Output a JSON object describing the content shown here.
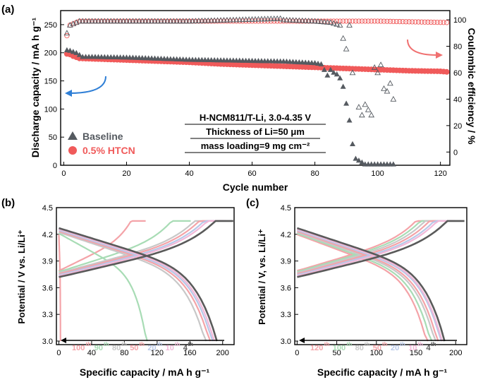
{
  "chart_data": [
    {
      "panel": "(a)",
      "type": "scatter",
      "xlabel": "Cycle number",
      "ylabel": "Discharge capacity / mA h g⁻¹",
      "y2label": "Coulombic efficiency / %",
      "xlim": [
        -1,
        123
      ],
      "ylim": [
        0,
        275
      ],
      "y2lim": [
        -10,
        107
      ],
      "xticks": [
        "0",
        "20",
        "40",
        "60",
        "80",
        "100",
        "120"
      ],
      "yticks": [
        "0",
        "50",
        "100",
        "150",
        "200",
        "250"
      ],
      "y2ticks": [
        "0",
        "20",
        "40",
        "60",
        "80",
        "100"
      ],
      "annotation": [
        "H-NCM811/T-Li, 3.0-4.35 V",
        "Thickness of Li=50 μm",
        "mass loading=9 mg cm⁻²"
      ],
      "legend": [
        {
          "name": "Baseline",
          "color": "#555a60",
          "marker": "triangle"
        },
        {
          "name": "0.5% HTCN",
          "color": "#f05a5a",
          "marker": "circle"
        }
      ],
      "series": [
        {
          "name": "Baseline capacity",
          "color": "#555a60",
          "x": [
            1,
            2,
            3,
            4,
            6,
            10,
            20,
            30,
            40,
            50,
            60,
            70,
            80,
            82,
            84,
            85,
            86,
            87,
            88,
            89,
            90,
            91,
            92,
            93,
            96,
            100,
            105
          ],
          "y": [
            205,
            204,
            202,
            200,
            193,
            193,
            192,
            190,
            188,
            187,
            186,
            185,
            182,
            180,
            160,
            170,
            165,
            162,
            155,
            140,
            110,
            80,
            38,
            12,
            2,
            2,
            2
          ]
        },
        {
          "name": "0.5% HTCN capacity",
          "color": "#f05a5a",
          "x": [
            1,
            2,
            3,
            5,
            10,
            20,
            30,
            40,
            50,
            60,
            70,
            80,
            90,
            100,
            110,
            120,
            122
          ],
          "y": [
            198,
            197,
            194,
            190,
            189,
            187,
            185,
            183,
            180,
            178,
            176,
            174,
            172,
            170,
            168,
            167,
            166
          ]
        },
        {
          "name": "Baseline CE",
          "color": "#555a60",
          "x": [
            1,
            2,
            3,
            5,
            10,
            40,
            69,
            70,
            80,
            85,
            88,
            89,
            90,
            91,
            92,
            94,
            95,
            96,
            97,
            98,
            99,
            100,
            101,
            102,
            103,
            104,
            105
          ],
          "y": [
            90,
            96,
            97,
            99,
            99,
            99,
            101,
            100,
            99,
            98,
            96,
            86,
            78,
            96,
            60,
            34,
            28,
            36,
            32,
            28,
            64,
            60,
            66,
            48,
            46,
            52,
            40
          ]
        },
        {
          "name": "0.5% HTCN CE",
          "color": "#f05a5a",
          "x": [
            1,
            2,
            3,
            5,
            10,
            20,
            40,
            60,
            80,
            100,
            122
          ],
          "y": [
            88,
            96,
            97,
            99,
            99,
            99,
            99,
            99,
            99,
            99,
            98
          ]
        }
      ]
    },
    {
      "panel": "(b)",
      "type": "line",
      "xlabel": "Specific capacity / mA h g⁻¹",
      "ylabel": "Potential / V vs. Li/Li⁺",
      "xlim": [
        -3,
        214
      ],
      "ylim": [
        2.96,
        4.5
      ],
      "xticks": [
        "0",
        "40",
        "80",
        "120",
        "160",
        "200"
      ],
      "yticks": [
        "3.0",
        "3.3",
        "3.6",
        "3.9",
        "4.2",
        "4.5"
      ],
      "cycles": [
        {
          "label": "100",
          "sup": "th",
          "color": "#f4a3a8",
          "charge_cap": 100,
          "discharge_cap": 2
        },
        {
          "label": "90",
          "sup": "th",
          "color": "#a8dcb5",
          "charge_cap": 155,
          "discharge_cap": 108
        },
        {
          "label": "80",
          "sup": "th",
          "color": "#c8c8c8",
          "charge_cap": 185,
          "discharge_cap": 180
        },
        {
          "label": "50",
          "sup": "th",
          "color": "#f4a3a8",
          "charge_cap": 190,
          "discharge_cap": 185
        },
        {
          "label": "20",
          "sup": "th",
          "color": "#b8c8e8",
          "charge_cap": 195,
          "discharge_cap": 188
        },
        {
          "label": "10",
          "sup": "th",
          "color": "#f2b8d8",
          "charge_cap": 198,
          "discharge_cap": 190
        },
        {
          "label": "4",
          "sup": "th",
          "color": "#5a5a5a",
          "charge_cap": 207,
          "discharge_cap": 193
        }
      ]
    },
    {
      "panel": "(c)",
      "type": "line",
      "xlabel": "Specific capacity / mA h g⁻¹",
      "ylabel": "Potential / V, vs. Li/Li⁺",
      "xlim": [
        -3,
        214
      ],
      "ylim": [
        2.96,
        4.5
      ],
      "xticks": [
        "0",
        "50",
        "100",
        "150",
        "200"
      ],
      "yticks": [
        "3.0",
        "3.3",
        "3.6",
        "3.9",
        "4.2",
        "4.5"
      ],
      "cycles": [
        {
          "label": "120",
          "sup": "th",
          "color": "#f4a3a8",
          "charge_cap": 170,
          "discharge_cap": 165
        },
        {
          "label": "100",
          "sup": "th",
          "color": "#a8dcb5",
          "charge_cap": 175,
          "discharge_cap": 170
        },
        {
          "label": "80",
          "sup": "th",
          "color": "#c8c8c8",
          "charge_cap": 180,
          "discharge_cap": 175
        },
        {
          "label": "50",
          "sup": "th",
          "color": "#f4a3a8",
          "charge_cap": 185,
          "discharge_cap": 178
        },
        {
          "label": "20",
          "sup": "th",
          "color": "#b8c8e8",
          "charge_cap": 190,
          "discharge_cap": 182
        },
        {
          "label": "10",
          "sup": "th",
          "color": "#f2b8d8",
          "charge_cap": 193,
          "discharge_cap": 183
        },
        {
          "label": "4",
          "sup": "th",
          "color": "#5a5a5a",
          "charge_cap": 205,
          "discharge_cap": 186
        }
      ]
    }
  ]
}
